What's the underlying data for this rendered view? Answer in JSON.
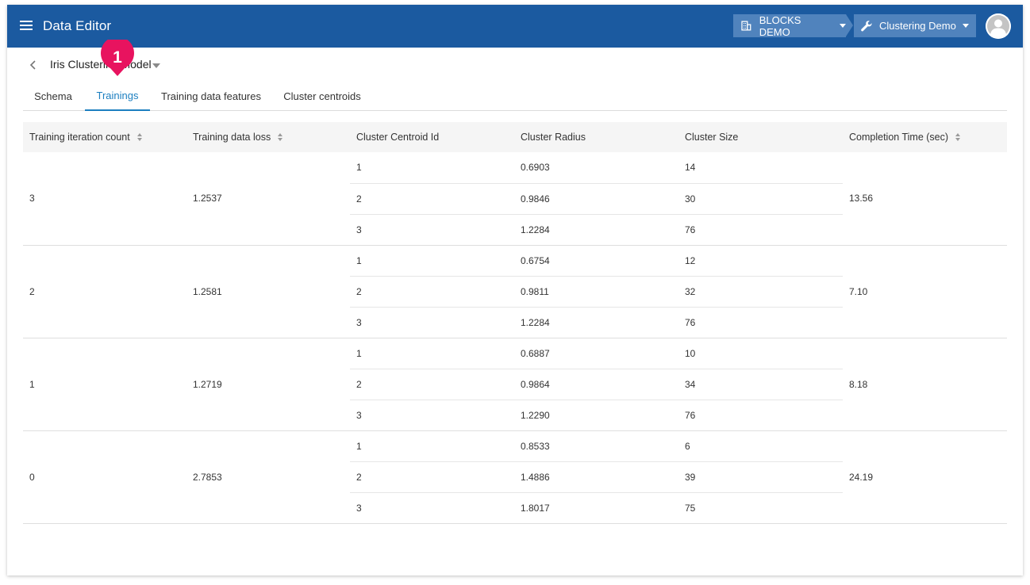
{
  "app": {
    "title": "Data Editor"
  },
  "header": {
    "org_label": "BLOCKS DEMO",
    "project_label": "Clustering Demo"
  },
  "page": {
    "model_name": "Iris Clustering Model",
    "callout_number": "1"
  },
  "tabs": [
    {
      "label": "Schema",
      "active": false
    },
    {
      "label": "Trainings",
      "active": true
    },
    {
      "label": "Training data features",
      "active": false
    },
    {
      "label": "Cluster centroids",
      "active": false
    }
  ],
  "table": {
    "headers": {
      "iteration": "Training iteration count",
      "loss": "Training data loss",
      "centroid_id": "Cluster Centroid Id",
      "radius": "Cluster Radius",
      "size": "Cluster Size",
      "time": "Completion Time (sec)"
    },
    "groups": [
      {
        "iteration": "3",
        "loss": "1.2537",
        "time": "13.56",
        "rows": [
          {
            "id": "1",
            "radius": "0.6903",
            "size": "14"
          },
          {
            "id": "2",
            "radius": "0.9846",
            "size": "30"
          },
          {
            "id": "3",
            "radius": "1.2284",
            "size": "76"
          }
        ]
      },
      {
        "iteration": "2",
        "loss": "1.2581",
        "time": "7.10",
        "rows": [
          {
            "id": "1",
            "radius": "0.6754",
            "size": "12"
          },
          {
            "id": "2",
            "radius": "0.9811",
            "size": "32"
          },
          {
            "id": "3",
            "radius": "1.2284",
            "size": "76"
          }
        ]
      },
      {
        "iteration": "1",
        "loss": "1.2719",
        "time": "8.18",
        "rows": [
          {
            "id": "1",
            "radius": "0.6887",
            "size": "10"
          },
          {
            "id": "2",
            "radius": "0.9864",
            "size": "34"
          },
          {
            "id": "3",
            "radius": "1.2290",
            "size": "76"
          }
        ]
      },
      {
        "iteration": "0",
        "loss": "2.7853",
        "time": "24.19",
        "rows": [
          {
            "id": "1",
            "radius": "0.8533",
            "size": "6"
          },
          {
            "id": "2",
            "radius": "1.4886",
            "size": "39"
          },
          {
            "id": "3",
            "radius": "1.8017",
            "size": "75"
          }
        ]
      }
    ]
  },
  "colors": {
    "appbar": "#1b5aa0",
    "accent": "#1c7fc0",
    "callout": "#e8135f"
  }
}
